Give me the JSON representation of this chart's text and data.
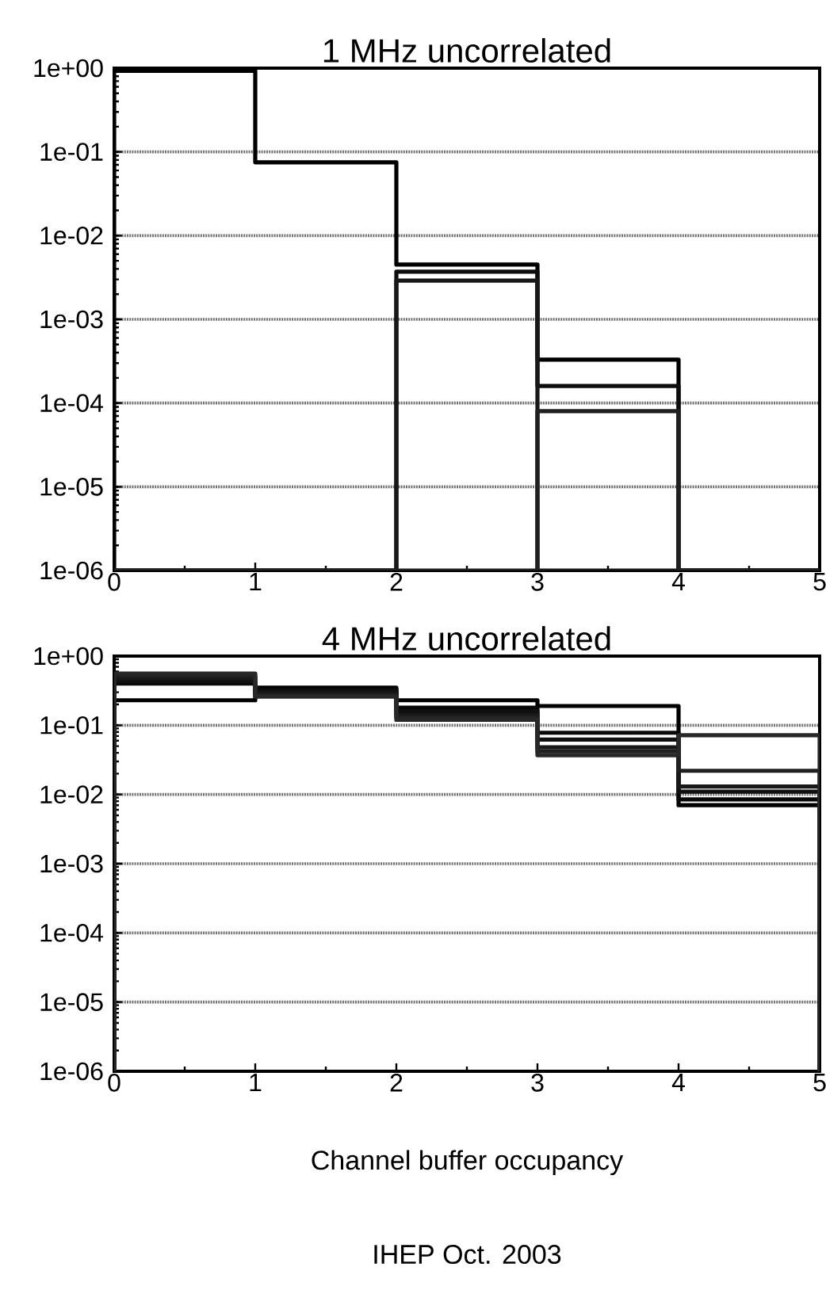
{
  "chart_data": [
    {
      "type": "histogram",
      "title": "1 MHz uncorrelated",
      "bins": [
        0,
        1,
        2,
        3,
        4,
        5
      ],
      "log": true,
      "grid": "y",
      "xlim": [
        0,
        5
      ],
      "xticks": [
        0,
        1,
        2,
        3,
        4,
        5
      ],
      "ylim": [
        1e-06,
        1
      ],
      "yticks": [
        {
          "value": 1e-06,
          "label": "1e-06"
        },
        {
          "value": 1e-05,
          "label": "1e-05"
        },
        {
          "value": 0.0001,
          "label": "1e-04"
        },
        {
          "value": 0.001,
          "label": "1e-03"
        },
        {
          "value": 0.01,
          "label": "1e-02"
        },
        {
          "value": 0.1,
          "label": "1e-01"
        },
        {
          "value": 1,
          "label": "1e+00"
        }
      ],
      "series": [
        {
          "color": "#000000",
          "values": [
            0.93,
            0.075,
            0.0045,
            0.00033,
            null
          ]
        },
        {
          "color": "#0c0c0c",
          "values": [
            null,
            null,
            0.0037,
            0.00016,
            null
          ]
        },
        {
          "color": "#181818",
          "values": [
            null,
            null,
            0.0029,
            null,
            null
          ]
        },
        {
          "color": "#202020",
          "values": [
            null,
            null,
            null,
            8e-05,
            null
          ]
        }
      ]
    },
    {
      "type": "histogram",
      "title": "4 MHz uncorrelated",
      "xlabel": "Channel buffer occupancy",
      "annotations": [
        "IHEP Oct. 2003"
      ],
      "bins": [
        0,
        1,
        2,
        3,
        4,
        5
      ],
      "log": true,
      "grid": "y",
      "xlim": [
        0,
        5
      ],
      "xticks": [
        0,
        1,
        2,
        3,
        4,
        5
      ],
      "ylim": [
        1e-06,
        1
      ],
      "yticks": [
        {
          "value": 1e-06,
          "label": "1e-06"
        },
        {
          "value": 1e-05,
          "label": "1e-05"
        },
        {
          "value": 0.0001,
          "label": "1e-04"
        },
        {
          "value": 0.001,
          "label": "1e-03"
        },
        {
          "value": 0.01,
          "label": "1e-02"
        },
        {
          "value": 0.1,
          "label": "1e-01"
        },
        {
          "value": 1,
          "label": "1e+00"
        }
      ],
      "series": [
        {
          "color": "#000000",
          "values": [
            0.23,
            0.35,
            0.23,
            0.19,
            0.007
          ]
        },
        {
          "color": "#080808",
          "values": [
            0.4,
            0.33,
            0.18,
            0.078,
            0.0085
          ]
        },
        {
          "color": "#101010",
          "values": [
            0.44,
            0.31,
            0.16,
            0.062,
            0.011
          ]
        },
        {
          "color": "#181818",
          "values": [
            0.48,
            0.29,
            0.14,
            0.048,
            0.013
          ]
        },
        {
          "color": "#202020",
          "values": [
            0.52,
            0.27,
            0.13,
            0.042,
            0.022
          ]
        },
        {
          "color": "#282828",
          "values": [
            0.56,
            0.26,
            0.12,
            0.037,
            0.072
          ]
        }
      ]
    }
  ]
}
